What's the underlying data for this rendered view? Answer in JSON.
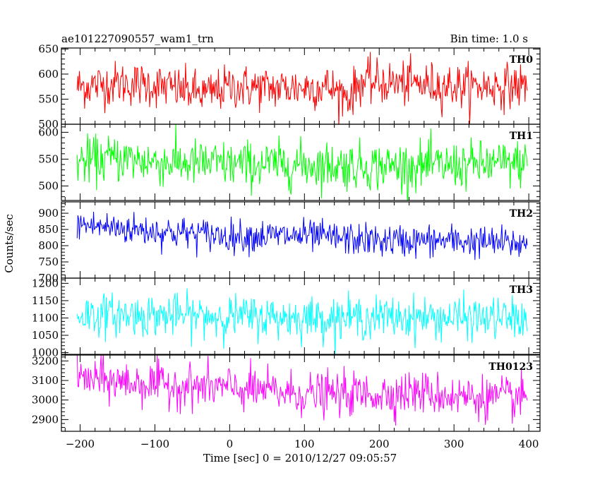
{
  "header": {
    "title": "ae101227090557_wam1_trn",
    "bin_time": "Bin time: 1.0 s"
  },
  "chart_data": {
    "type": "line",
    "title": "ae101227090557_wam1_trn",
    "subtitle": "Bin time: 1.0 s",
    "xlabel": "Time [sec] 0 = 2010/12/27 09:05:57",
    "ylabel": "Counts/sec",
    "xlim": [
      -225,
      415
    ],
    "x_range": [
      -204,
      398
    ],
    "bin_size": 1.0,
    "x_ticks": [
      -200,
      -100,
      0,
      100,
      200,
      300,
      400
    ],
    "x_tick_labels": [
      "−200",
      "−100",
      "0",
      "100",
      "200",
      "300",
      "400"
    ],
    "grid": false,
    "series": [
      {
        "name": "TH0",
        "color": "#ff0000",
        "ylim": [
          500,
          652
        ],
        "yticks": [
          500,
          550,
          600,
          650
        ],
        "yticklabels": [
          "500",
          "550",
          "600",
          "650"
        ],
        "mean_segments": [
          [
            -204,
            575
          ],
          [
            -150,
            582
          ],
          [
            -100,
            578
          ],
          [
            -30,
            560
          ],
          [
            0,
            575
          ],
          [
            60,
            572
          ],
          [
            130,
            575
          ],
          [
            160,
            555
          ],
          [
            175,
            585
          ],
          [
            250,
            580
          ],
          [
            320,
            575
          ],
          [
            398,
            577
          ]
        ],
        "noise_sd": 22
      },
      {
        "name": "TH1",
        "color": "#00ff00",
        "ylim": [
          473,
          615
        ],
        "yticks": [
          500,
          550,
          600
        ],
        "yticklabels": [
          "500",
          "550",
          "600"
        ],
        "mean_segments": [
          [
            -204,
            545
          ],
          [
            -150,
            552
          ],
          [
            -100,
            545
          ],
          [
            0,
            540
          ],
          [
            100,
            540
          ],
          [
            200,
            537
          ],
          [
            300,
            538
          ],
          [
            398,
            542
          ]
        ],
        "noise_sd": 22
      },
      {
        "name": "TH2",
        "color": "#0000ff",
        "ylim": [
          700,
          935
        ],
        "yticks": [
          700,
          750,
          800,
          850,
          900
        ],
        "yticklabels": [
          "700",
          "750",
          "800",
          "850",
          "900"
        ],
        "mean_segments": [
          [
            -204,
            865
          ],
          [
            -150,
            855
          ],
          [
            -100,
            845
          ],
          [
            0,
            830
          ],
          [
            100,
            830
          ],
          [
            200,
            815
          ],
          [
            300,
            815
          ],
          [
            398,
            805
          ]
        ],
        "noise_sd": 25
      },
      {
        "name": "TH3",
        "color": "#00ffff",
        "ylim": [
          995,
          1215
        ],
        "yticks": [
          1000,
          1050,
          1100,
          1150,
          1200
        ],
        "yticklabels": [
          "1000",
          "1050",
          "1100",
          "1150",
          "1200"
        ],
        "mean_segments": [
          [
            -204,
            1110
          ],
          [
            -100,
            1108
          ],
          [
            0,
            1105
          ],
          [
            100,
            1100
          ],
          [
            200,
            1102
          ],
          [
            300,
            1100
          ],
          [
            398,
            1098
          ]
        ],
        "noise_sd": 30
      },
      {
        "name": "TH0123",
        "color": "#ff00ff",
        "ylim": [
          2840,
          3230
        ],
        "yticks": [
          2900,
          3000,
          3100,
          3200
        ],
        "yticklabels": [
          "2900",
          "3000",
          "3100",
          "3200"
        ],
        "mean_segments": [
          [
            -204,
            3110
          ],
          [
            -100,
            3080
          ],
          [
            0,
            3060
          ],
          [
            100,
            3030
          ],
          [
            200,
            3030
          ],
          [
            250,
            3040
          ],
          [
            300,
            3020
          ],
          [
            398,
            3005
          ]
        ],
        "noise_sd": 55
      }
    ]
  }
}
